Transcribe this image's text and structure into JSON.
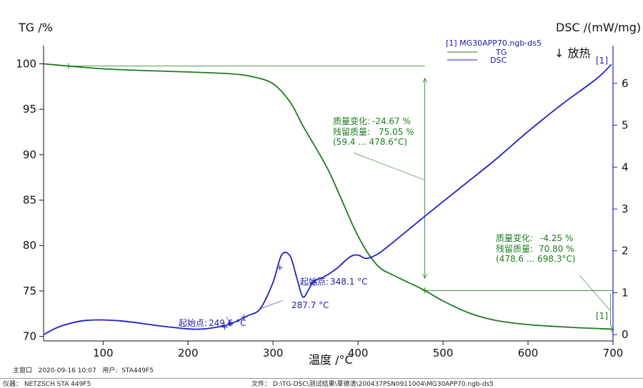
{
  "chart_data": {
    "type": "line",
    "title": "",
    "ylabel_left": "TG /%",
    "ylabel_right": "DSC /(mW/mg)",
    "exo_label": "↓ 放热",
    "xlabel": "温度 /°C",
    "xlim": [
      30,
      700
    ],
    "ylim_left": [
      69.5,
      102
    ],
    "ylim_right": [
      -0.15,
      6.9
    ],
    "x_ticks": [
      100,
      200,
      300,
      400,
      500,
      600,
      700
    ],
    "y_ticks_left": [
      70,
      75,
      80,
      85,
      90,
      95,
      100
    ],
    "y_ticks_right": [
      0,
      1,
      2,
      3,
      4,
      5,
      6
    ],
    "legend": {
      "file": "[1]  MG30APP70.ngb-ds5",
      "entries": [
        "TG",
        "DSC"
      ]
    },
    "series": [
      {
        "name": "TG",
        "color": "#1f7a1f",
        "axis": "left",
        "x": [
          30,
          60,
          100,
          150,
          200,
          250,
          275,
          300,
          320,
          335,
          350,
          365,
          380,
          395,
          410,
          425,
          440,
          460,
          478.6,
          500,
          530,
          560,
          600,
          650,
          698.3
        ],
        "y": [
          100.0,
          99.75,
          99.45,
          99.25,
          99.1,
          98.9,
          98.6,
          97.8,
          95.8,
          93.2,
          90.8,
          88.3,
          85.2,
          82.0,
          79.4,
          77.6,
          76.8,
          75.9,
          75.05,
          73.9,
          72.6,
          71.8,
          71.3,
          71.0,
          70.8
        ]
      },
      {
        "name": "DSC",
        "color": "#2020c8",
        "axis": "right",
        "x": [
          30,
          50,
          80,
          120,
          170,
          210,
          240,
          255,
          270,
          285,
          300,
          310,
          320,
          328,
          335,
          342,
          348,
          360,
          375,
          390,
          400,
          410,
          425,
          450,
          480,
          520,
          560,
          600,
          640,
          680,
          698
        ],
        "y": [
          0.0,
          0.2,
          0.34,
          0.33,
          0.2,
          0.13,
          0.2,
          0.3,
          0.45,
          0.62,
          1.25,
          1.9,
          1.88,
          1.35,
          0.9,
          1.08,
          1.28,
          1.38,
          1.58,
          1.85,
          1.9,
          1.82,
          1.95,
          2.35,
          2.85,
          3.5,
          4.15,
          4.85,
          5.5,
          6.1,
          6.45
        ]
      }
    ],
    "annotations": {
      "tg1": {
        "label1": "质量变化:",
        "value1": "-24.67 %",
        "label2": "残留质量:",
        "value2": "75.05 %",
        "range": "(59.4 ... 478.6°C)"
      },
      "tg2": {
        "label1": "质量变化:",
        "value1": "-4.25 %",
        "label2": "残留质量:",
        "value2": "70.80 %",
        "range": "(478.6 ... 698.3°C)"
      },
      "onset1": {
        "label": "起始点:",
        "value": "249.6 °C"
      },
      "onset2": {
        "label": "",
        "value": "287.7 °C"
      },
      "onset3": {
        "label": "起始点:",
        "value": "348.1 °C"
      },
      "end_marker": "[1]",
      "start_marker": "[1]"
    }
  },
  "footer": {
    "window_label": "主窗口",
    "datetime": "2020-09-16 10:07",
    "user_label": "用户:",
    "user": "STA449F5",
    "instrument_label": "仪器：",
    "instrument": "NETZSCH STA 449F5",
    "file_label": "文件：",
    "file": "D:\\TG-DSC\\测试结果\\覃德清\\200437PSN0911004\\MG30APP70.ngb-ds5"
  }
}
